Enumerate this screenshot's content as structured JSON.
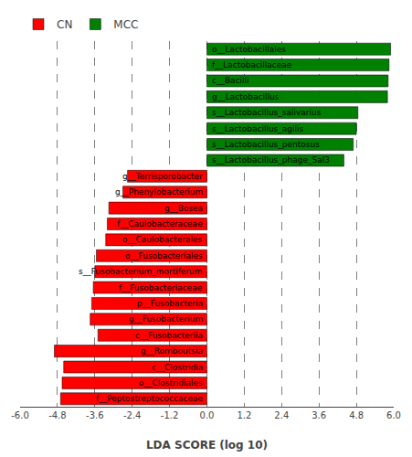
{
  "chart_data": {
    "type": "bar",
    "orientation": "horizontal",
    "xlabel": "LDA SCORE (log 10)",
    "categories": [
      "o__Lactobacillales",
      "f__Lactobacillaceae",
      "c__Bacilli",
      "g__Lactobacillus",
      "s__Lactobacillus_salivarius",
      "s__Lactobacillus_agilis",
      "s__Lactobacillus_pentosus",
      "s__Lactobacillus_phage_Sal3",
      "g__Terrisporobacter",
      "g__Phenylobacterium",
      "g__Bosea",
      "f__Caulobacteraceae",
      "o__Caulobacterales",
      "o__Fusobacteriales",
      "s__Fusobacterium_mortiferum",
      "f__Fusobacteriaceae",
      "p__Fusobacteria",
      "g__Fusobacterium",
      "c__Fusobacteriia",
      "g__Romboutsia",
      "c__Clostridia",
      "o__Clostridiales",
      "f__Peptostreptococcaceae"
    ],
    "series": [
      {
        "name": "CN",
        "color": "#ff0000",
        "values": [
          null,
          null,
          null,
          null,
          null,
          null,
          null,
          null,
          -2.55,
          -2.7,
          -3.15,
          -3.2,
          -3.25,
          -3.55,
          -3.6,
          -3.65,
          -3.7,
          -3.75,
          -3.5,
          -4.9,
          -4.6,
          -4.65,
          -4.7
        ]
      },
      {
        "name": "MCC",
        "color": "#008000",
        "values": [
          5.9,
          5.85,
          5.82,
          5.8,
          4.85,
          4.8,
          4.7,
          4.4,
          null,
          null,
          null,
          null,
          null,
          null,
          null,
          null,
          null,
          null,
          null,
          null,
          null,
          null,
          null
        ]
      }
    ],
    "xlim": [
      -6.0,
      6.0
    ],
    "xticks": [
      {
        "value": -6.0,
        "label": "-6.0"
      },
      -4.8,
      -3.6,
      -2.4,
      -1.2,
      {
        "value": 0.0,
        "label": "0.0"
      },
      1.2,
      2.4,
      3.6,
      4.8,
      {
        "value": 6.0,
        "label": "6.0"
      }
    ],
    "grid": true,
    "legend": "top",
    "tick_labels": "x"
  }
}
